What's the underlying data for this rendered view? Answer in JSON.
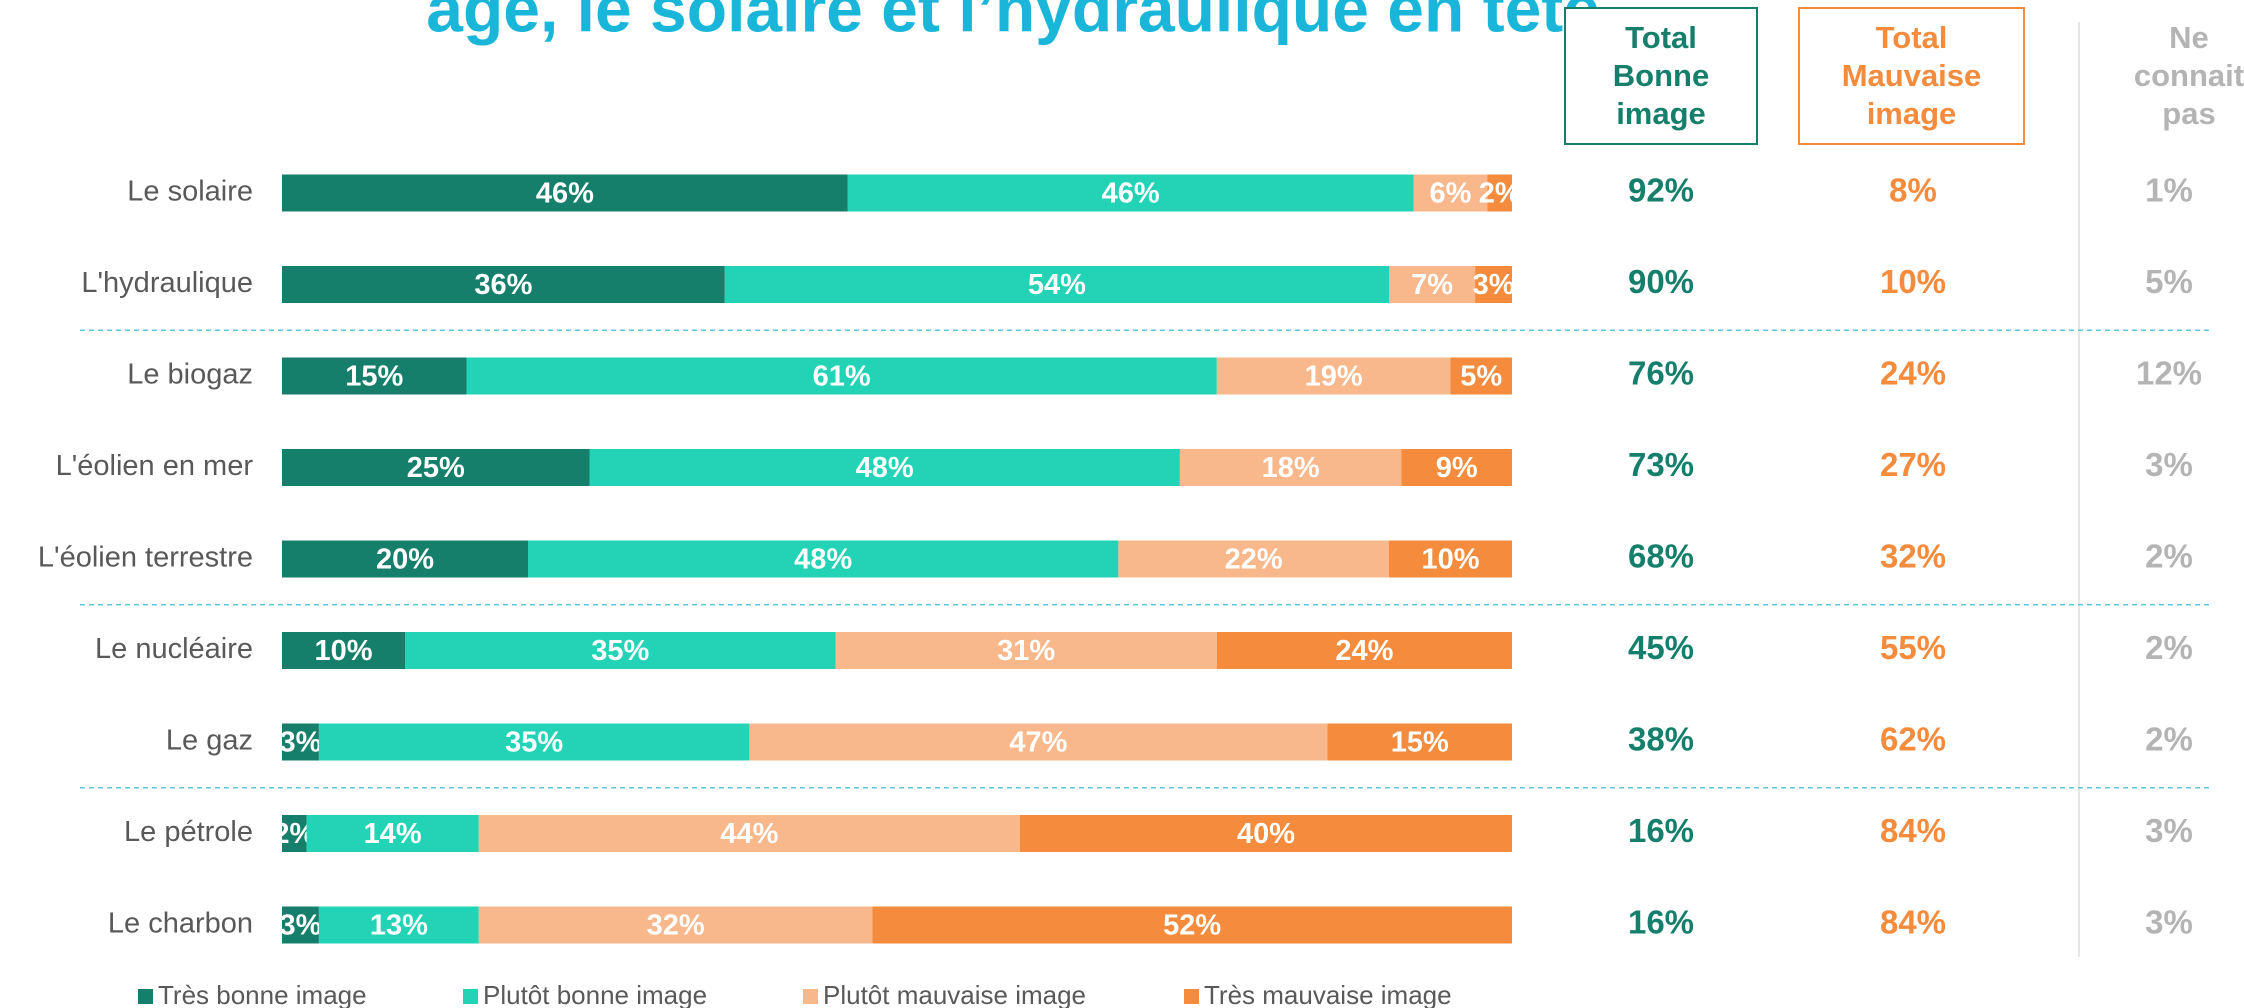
{
  "chart_data": {
    "type": "bar",
    "orientation": "horizontal",
    "stacked": true,
    "title": "age, le solaire et l’hydraulique en tête",
    "xlim": [
      0,
      100
    ],
    "legend": "bottom",
    "categories": [
      "Le solaire",
      "L'hydraulique",
      "Le biogaz",
      "L'éolien en mer",
      "L'éolien terrestre",
      "Le nucléaire",
      "Le gaz",
      "Le pétrole",
      "Le charbon"
    ],
    "series": [
      {
        "name": "Très bonne image",
        "color": "#167f6b",
        "values": [
          46,
          36,
          15,
          25,
          20,
          10,
          3,
          2,
          3
        ],
        "value_labels": [
          "46%",
          "36%",
          "15%",
          "25%",
          "20%",
          "10%",
          "3%",
          "2%",
          "3%"
        ]
      },
      {
        "name": "Plutôt bonne image",
        "color": "#23d3b5",
        "values": [
          46,
          54,
          61,
          48,
          48,
          35,
          35,
          14,
          13
        ],
        "value_labels": [
          "46%",
          "54%",
          "61%",
          "48%",
          "48%",
          "35%",
          "35%",
          "14%",
          "13%"
        ]
      },
      {
        "name": "Plutôt mauvaise image",
        "color": "#f8b88b",
        "values": [
          6,
          7,
          19,
          18,
          22,
          31,
          47,
          44,
          32
        ],
        "value_labels": [
          "6%",
          "7%",
          "19%",
          "18%",
          "22%",
          "31%",
          "47%",
          "44%",
          "32%"
        ]
      },
      {
        "name": "Très mauvaise image",
        "color": "#f58b3c",
        "values": [
          2,
          3,
          5,
          9,
          10,
          24,
          15,
          40,
          52
        ],
        "value_labels": [
          "2%",
          "3%",
          "5%",
          "9%",
          "10%",
          "24%",
          "15%",
          "40%",
          "52%"
        ]
      }
    ],
    "table_columns": [
      {
        "name": "Total Bonne image",
        "color": "#167f6b",
        "values": [
          92,
          90,
          76,
          73,
          68,
          45,
          38,
          16,
          16
        ],
        "value_labels": [
          "92%",
          "90%",
          "76%",
          "73%",
          "68%",
          "45%",
          "38%",
          "16%",
          "16%"
        ]
      },
      {
        "name": "Total Mauvaise image",
        "color": "#f58b3c",
        "values": [
          8,
          10,
          24,
          27,
          32,
          55,
          62,
          84,
          84
        ],
        "value_labels": [
          "8%",
          "10%",
          "24%",
          "27%",
          "32%",
          "55%",
          "62%",
          "84%",
          "84%"
        ]
      },
      {
        "name": "Ne connait pas",
        "color": "#b4b4b4",
        "values": [
          1,
          5,
          12,
          3,
          2,
          2,
          2,
          3,
          3
        ],
        "value_labels": [
          "1%",
          "5%",
          "12%",
          "3%",
          "2%",
          "2%",
          "2%",
          "3%",
          "3%"
        ]
      }
    ]
  }
}
